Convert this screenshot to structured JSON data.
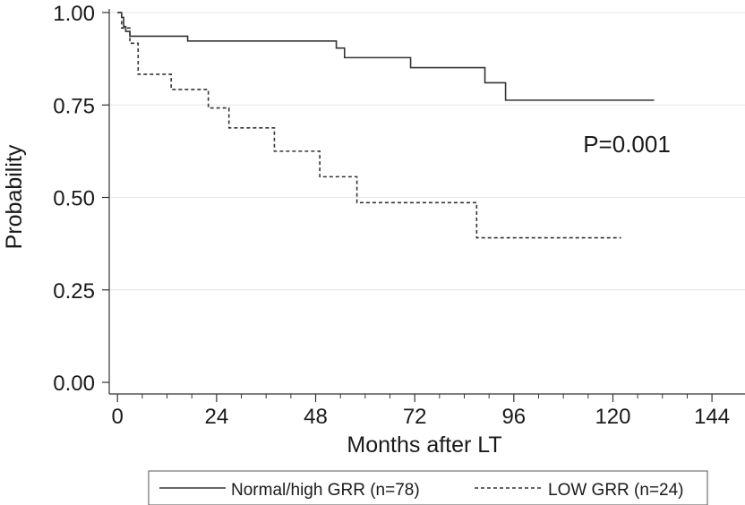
{
  "chart_data": {
    "type": "line",
    "step": true,
    "xlabel": "Months after LT",
    "ylabel": "Probability",
    "x_ticks": [
      0,
      24,
      48,
      72,
      96,
      120,
      144
    ],
    "x_tick_labels": [
      "0",
      "24",
      "48",
      "72",
      "96",
      "120",
      "144"
    ],
    "y_ticks": [
      0,
      0.25,
      0.5,
      0.75,
      1
    ],
    "y_tick_labels": [
      "0.00",
      "0.25",
      "0.50",
      "0.75",
      "1.00"
    ],
    "xlim": [
      -2,
      152
    ],
    "ylim": [
      0,
      1
    ],
    "grid": "horizontal",
    "legend_position": "bottom",
    "annotation": "P=0.001",
    "series": [
      {
        "name": "Normal/high GRR (n=78)",
        "line_style": "solid",
        "color": "#333333",
        "x": [
          0,
          1,
          1.5,
          2,
          3,
          17,
          53,
          55,
          57,
          71,
          89,
          94,
          130
        ],
        "y": [
          1.0,
          0.987,
          0.962,
          0.949,
          0.936,
          0.923,
          0.904,
          0.878,
          0.878,
          0.851,
          0.81,
          0.763,
          0.763
        ]
      },
      {
        "name": "LOW GRR (n=24)",
        "line_style": "dashed",
        "color": "#333333",
        "x": [
          0,
          1,
          2,
          3,
          5,
          13,
          22,
          27,
          38,
          49,
          58,
          87,
          122
        ],
        "y": [
          1.0,
          0.958,
          0.958,
          0.917,
          0.833,
          0.792,
          0.742,
          0.688,
          0.625,
          0.556,
          0.486,
          0.391,
          0.391
        ]
      }
    ]
  }
}
